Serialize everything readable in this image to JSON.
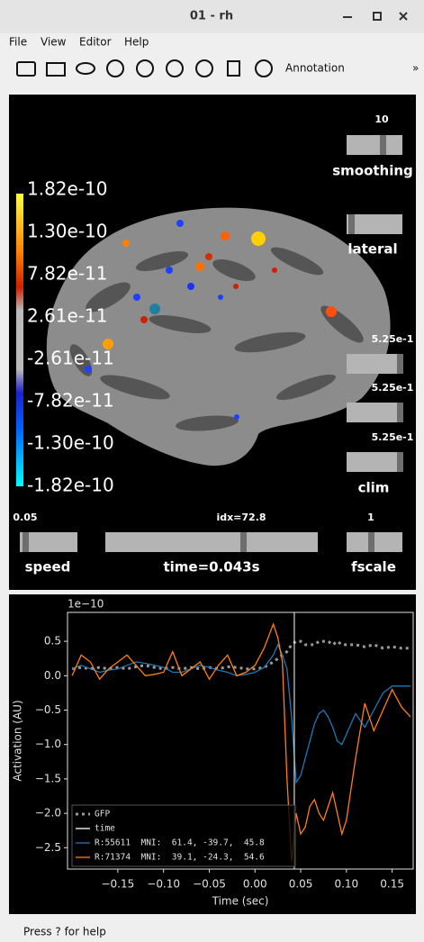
{
  "window": {
    "title": "01 - rh"
  },
  "menu": [
    "File",
    "View",
    "Editor",
    "Help"
  ],
  "toolbar": {
    "label": "Annotation",
    "overflow": "»"
  },
  "viewer": {
    "colorbar": {
      "labels": [
        "1.82e-10",
        "1.30e-10",
        "7.82e-11",
        "2.61e-11",
        "-2.61e-11",
        "-7.82e-11",
        "-1.30e-10",
        "-1.82e-10"
      ]
    },
    "sliders": [
      {
        "value": "10",
        "label": "smoothing"
      },
      {
        "label": "lateral"
      },
      {
        "value": "5.25e-1"
      },
      {
        "value": "5.25e-1"
      },
      {
        "value": "5.25e-1",
        "label": "clim"
      },
      {
        "value": "0.05",
        "label": "speed"
      },
      {
        "value": "idx=72.8",
        "label": "time=0.043s"
      },
      {
        "value": "1",
        "label": "fscale"
      }
    ]
  },
  "chart_data": {
    "type": "line",
    "offset_label": "1e−10",
    "xlabel": "Time (sec)",
    "ylabel": "Activation (AU)",
    "xlim": [
      -0.205,
      0.173
    ],
    "ylim": [
      -2.81,
      0.92
    ],
    "xticks": [
      {
        "value": -0.15,
        "label": "−0.15"
      },
      {
        "value": -0.1,
        "label": "−0.10"
      },
      {
        "value": -0.05,
        "label": "−0.05"
      },
      {
        "value": 0,
        "label": "0.00"
      },
      0.05,
      {
        "value": 0.1,
        "label": "0.10"
      },
      0.15
    ],
    "yticks": [
      0.5,
      {
        "value": 0,
        "label": "0.0"
      },
      {
        "value": -0.5,
        "label": "−0.5"
      },
      {
        "value": -1,
        "label": "−1.0"
      },
      {
        "value": -1.5,
        "label": "−1.5"
      },
      {
        "value": -2,
        "label": "−2.0"
      },
      {
        "value": -2.5,
        "label": "−2.5"
      }
    ],
    "legend": "lower left",
    "x": [
      -0.2,
      -0.19,
      -0.18,
      -0.17,
      -0.16,
      -0.15,
      -0.14,
      -0.13,
      -0.12,
      -0.11,
      -0.1,
      -0.09,
      -0.08,
      -0.07,
      -0.06,
      -0.05,
      -0.04,
      -0.03,
      -0.02,
      -0.01,
      0,
      0.01,
      0.02,
      0.025,
      0.03,
      0.035,
      0.04,
      0.045,
      0.05,
      0.055,
      0.06,
      0.065,
      0.07,
      0.075,
      0.08,
      0.085,
      0.09,
      0.095,
      0.1,
      0.11,
      0.12,
      0.13,
      0.14,
      0.15,
      0.16,
      0.17
    ],
    "series": [
      {
        "name": "GFP",
        "color": "#9a9a9a",
        "style": "dotted",
        "values": [
          0.1,
          0.12,
          0.1,
          0.12,
          0.1,
          0.12,
          0.1,
          0.13,
          0.15,
          0.12,
          0.1,
          0.12,
          0.1,
          0.12,
          0.1,
          0.12,
          0.1,
          0.13,
          0.12,
          0.1,
          0.1,
          0.12,
          0.2,
          0.25,
          0.3,
          0.35,
          0.45,
          0.5,
          0.5,
          0.45,
          0.45,
          0.45,
          0.5,
          0.5,
          0.5,
          0.45,
          0.5,
          0.45,
          0.45,
          0.45,
          0.42,
          0.45,
          0.4,
          0.42,
          0.4,
          0.4
        ]
      },
      {
        "name": "R:55611  MNI:  61.4, -39.7,  45.8",
        "color": "#1f77b4",
        "style": "solid",
        "values": [
          0.1,
          0.15,
          0.1,
          0.05,
          0.08,
          0.1,
          0.15,
          0.2,
          0.18,
          0.15,
          0.12,
          0.05,
          0.05,
          0.1,
          0.15,
          0.12,
          0.08,
          0.05,
          0,
          0.02,
          0.05,
          0.12,
          0.3,
          0.45,
          0.3,
          0.1,
          -0.6,
          -1.55,
          -1.45,
          -1.2,
          -0.95,
          -0.7,
          -0.55,
          -0.5,
          -0.6,
          -0.75,
          -0.95,
          -1,
          -0.85,
          -0.55,
          -0.75,
          -0.5,
          -0.25,
          -0.15,
          -0.15,
          -0.15
        ]
      },
      {
        "name": "R:71374  MNI:  39.1, -24.3,  54.6",
        "color": "#ff7f0e",
        "style": "solid",
        "values": [
          0,
          0.3,
          0.2,
          -0.05,
          0.1,
          0.2,
          0.3,
          0.15,
          0,
          0.02,
          0.05,
          0.35,
          0,
          0.1,
          0.2,
          -0.05,
          0.15,
          0.3,
          0,
          0.05,
          0.15,
          0.4,
          0.75,
          0.55,
          0.2,
          -1.5,
          -2.7,
          -2,
          -2.3,
          -2.2,
          -1.9,
          -1.8,
          -2,
          -2.1,
          -1.9,
          -1.7,
          -2,
          -2.3,
          -2.1,
          -1.2,
          -0.4,
          -0.8,
          -0.5,
          -0.2,
          -0.45,
          -0.6
        ]
      }
    ],
    "time_marker": {
      "name": "time",
      "color": "#ffffff",
      "x": 0.043
    }
  },
  "status": "Press ? for help"
}
